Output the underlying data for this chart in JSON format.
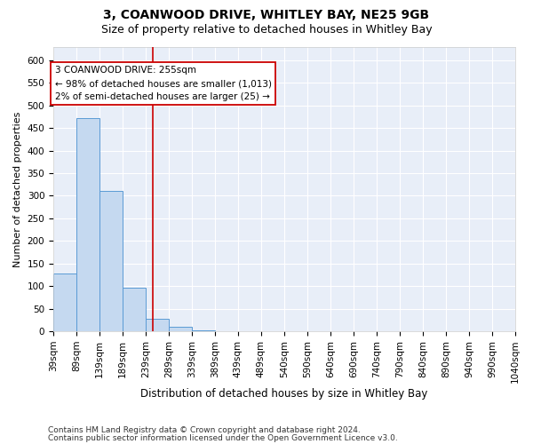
{
  "title": "3, COANWOOD DRIVE, WHITLEY BAY, NE25 9GB",
  "subtitle": "Size of property relative to detached houses in Whitley Bay",
  "xlabel": "Distribution of detached houses by size in Whitley Bay",
  "ylabel": "Number of detached properties",
  "footnote1": "Contains HM Land Registry data © Crown copyright and database right 2024.",
  "footnote2": "Contains public sector information licensed under the Open Government Licence v3.0.",
  "annotation_line1": "3 COANWOOD DRIVE: 255sqm",
  "annotation_line2": "← 98% of detached houses are smaller (1,013)",
  "annotation_line3": "2% of semi-detached houses are larger (25) →",
  "bar_color": "#c5d9f0",
  "bar_edge_color": "#5b9bd5",
  "vline_color": "#cc0000",
  "vline_x": 255,
  "bin_edges": [
    39,
    89,
    139,
    189,
    239,
    289,
    339,
    389,
    439,
    489,
    540,
    590,
    640,
    690,
    740,
    790,
    840,
    890,
    940,
    990,
    1040
  ],
  "bar_heights": [
    128,
    472,
    310,
    96,
    28,
    10,
    3,
    0,
    0,
    0,
    0,
    1,
    0,
    0,
    0,
    0,
    0,
    0,
    0,
    1
  ],
  "ylim": [
    0,
    630
  ],
  "yticks": [
    0,
    50,
    100,
    150,
    200,
    250,
    300,
    350,
    400,
    450,
    500,
    550,
    600
  ],
  "background_color": "#ffffff",
  "plot_bg_color": "#e8eef8",
  "title_fontsize": 10,
  "subtitle_fontsize": 9,
  "xlabel_fontsize": 8.5,
  "ylabel_fontsize": 8,
  "tick_fontsize": 7.5,
  "annotation_fontsize": 7.5,
  "annotation_box_color": "#ffffff",
  "annotation_box_edge": "#cc0000",
  "grid_color": "#ffffff",
  "footnote_fontsize": 6.5
}
